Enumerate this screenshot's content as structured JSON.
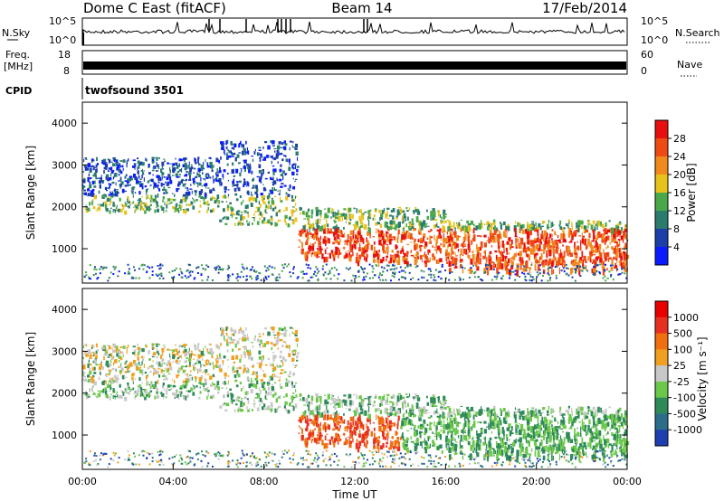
{
  "header": {
    "station": "Dome C East (fitACF)",
    "beam": "Beam 14",
    "date": "17/Feb/2014"
  },
  "top_panels": {
    "nsky_label": "N.Sky",
    "nsearch_label": "N.Search",
    "count_ticks": [
      "10^5",
      "10^0"
    ],
    "freq_label": "Freq.",
    "freq_unit": "[MHz]",
    "freq_ticks": [
      "18",
      "8"
    ],
    "nave_label": "Nave",
    "nave_ticks": [
      "60",
      "0"
    ],
    "cpid_label": "CPID",
    "cpid_value": "twofsound 3501"
  },
  "chart_data": [
    {
      "type": "heatmap",
      "title": "",
      "ylabel": "Slant Range [km]",
      "xlabel": "",
      "ylim": [
        180,
        4500
      ],
      "yticks": [
        "4000",
        "3000",
        "2000",
        "1000"
      ],
      "colorbar_label": "Power [dB]",
      "colorbar_ticks": [
        "28",
        "24",
        "20",
        "16",
        "12",
        "8",
        "4"
      ],
      "colors": [
        "#0a1cff",
        "#1d3ea8",
        "#2c7c6e",
        "#4ba84a",
        "#e8c21c",
        "#f08a1c",
        "#f04a14",
        "#e80f0f"
      ]
    },
    {
      "type": "heatmap",
      "title": "",
      "ylabel": "Slant Range [km]",
      "xlabel": "Time UT",
      "ylim": [
        180,
        4500
      ],
      "yticks": [
        "4000",
        "3000",
        "2000",
        "1000"
      ],
      "xticks": [
        "00:00",
        "04:00",
        "08:00",
        "12:00",
        "16:00",
        "20:00",
        "00:00"
      ],
      "colorbar_label": "Velocity [m s⁻¹]",
      "colorbar_ticks": [
        "1000",
        "500",
        "100",
        "25",
        "-25",
        "-100",
        "-500",
        "-1000"
      ],
      "colors": [
        "#1e3fb0",
        "#2c6e8a",
        "#2f8a5a",
        "#6cc84a",
        "#c8c8c8",
        "#f0a020",
        "#f07010",
        "#e83020",
        "#e80000"
      ]
    }
  ]
}
